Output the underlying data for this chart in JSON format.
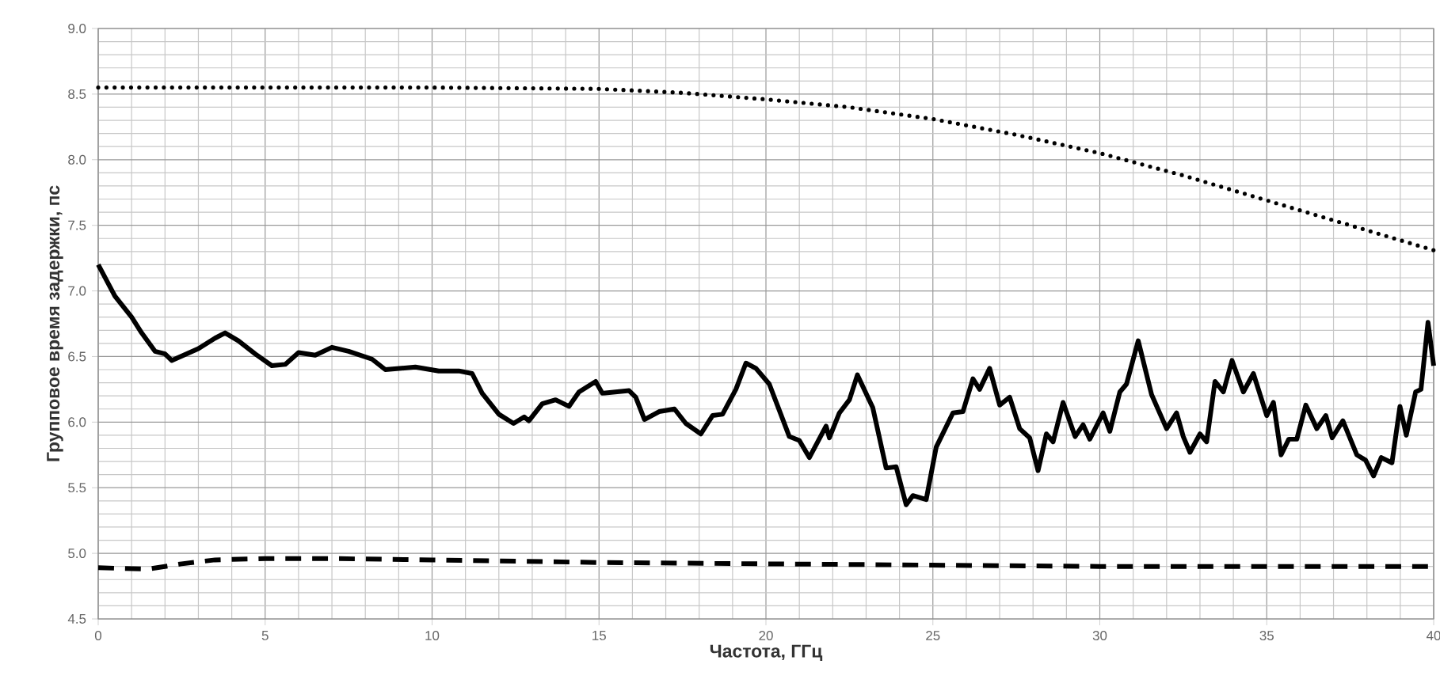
{
  "chart_data": {
    "type": "line",
    "xlabel": "Частота, ГГц",
    "ylabel": "Групповое время задержки, пс",
    "xlim": [
      0,
      40
    ],
    "xticks": [
      0,
      5,
      10,
      15,
      20,
      25,
      30,
      35,
      40
    ],
    "ylim": [
      4.5,
      9.0
    ],
    "yticks": [
      {
        "value": 4.5,
        "label": "4.5"
      },
      {
        "value": 5.0,
        "label": "5.0"
      },
      {
        "value": 5.5,
        "label": "5.5"
      },
      {
        "value": 6.0,
        "label": "6.0"
      },
      {
        "value": 6.5,
        "label": "6.5"
      },
      {
        "value": 7.0,
        "label": "7.0"
      },
      {
        "value": 7.5,
        "label": "7.5"
      },
      {
        "value": 8.0,
        "label": "8.0"
      },
      {
        "value": 8.5,
        "label": "8.5"
      },
      {
        "value": 9.0,
        "label": "9.0"
      }
    ],
    "grid": true,
    "series": [
      {
        "color": "#000000",
        "line_style": "dotted",
        "x": [
          0,
          5,
          10,
          15,
          17.5,
          20,
          22.5,
          25,
          27.5,
          30,
          32.5,
          35,
          37.5,
          40
        ],
        "values": [
          8.55,
          8.55,
          8.55,
          8.54,
          8.51,
          8.46,
          8.4,
          8.31,
          8.19,
          8.05,
          7.88,
          7.69,
          7.5,
          7.31
        ]
      },
      {
        "color": "#000000",
        "line_style": "solid",
        "x": [
          0,
          0.5,
          1.0,
          1.3,
          1.7,
          2.0,
          2.2,
          3.0,
          3.5,
          3.8,
          4.2,
          4.7,
          5.2,
          5.6,
          6.0,
          6.5,
          7.0,
          7.5,
          8.2,
          8.6,
          9.5,
          10.2,
          10.8,
          11.2,
          11.5,
          12.0,
          12.44,
          12.76,
          12.9,
          13.3,
          13.7,
          14.1,
          14.4,
          14.9,
          15.1,
          15.9,
          16.1,
          16.36,
          16.8,
          17.26,
          17.6,
          18.05,
          18.4,
          18.7,
          19.1,
          19.4,
          19.7,
          20.1,
          20.4,
          20.7,
          21.0,
          21.3,
          21.8,
          21.9,
          22.2,
          22.5,
          22.74,
          23.2,
          23.6,
          23.9,
          24.2,
          24.4,
          24.8,
          25.1,
          25.6,
          25.9,
          26.2,
          26.4,
          26.7,
          27.0,
          27.3,
          27.6,
          27.9,
          28.15,
          28.4,
          28.6,
          28.9,
          29.26,
          29.5,
          29.7,
          30.1,
          30.3,
          30.6,
          30.8,
          31.15,
          31.55,
          32.0,
          32.3,
          32.5,
          32.7,
          33.0,
          33.2,
          33.45,
          33.7,
          33.96,
          34.3,
          34.6,
          35.0,
          35.2,
          35.43,
          35.66,
          35.9,
          36.17,
          36.5,
          36.77,
          36.96,
          37.28,
          37.7,
          37.96,
          38.2,
          38.43,
          38.75,
          38.99,
          39.18,
          39.46,
          39.62,
          39.83,
          40.0
        ],
        "values": [
          7.2,
          6.96,
          6.8,
          6.68,
          6.54,
          6.52,
          6.47,
          6.56,
          6.64,
          6.68,
          6.62,
          6.52,
          6.43,
          6.44,
          6.53,
          6.51,
          6.57,
          6.54,
          6.48,
          6.4,
          6.42,
          6.39,
          6.39,
          6.37,
          6.22,
          6.06,
          5.99,
          6.04,
          6.01,
          6.14,
          6.17,
          6.12,
          6.23,
          6.31,
          6.22,
          6.24,
          6.19,
          6.02,
          6.08,
          6.1,
          5.99,
          5.91,
          6.05,
          6.06,
          6.25,
          6.45,
          6.41,
          6.29,
          6.09,
          5.89,
          5.86,
          5.73,
          5.97,
          5.88,
          6.07,
          6.17,
          6.36,
          6.11,
          5.65,
          5.66,
          5.37,
          5.44,
          5.41,
          5.81,
          6.07,
          6.08,
          6.33,
          6.25,
          6.41,
          6.13,
          6.19,
          5.95,
          5.88,
          5.63,
          5.91,
          5.85,
          6.15,
          5.89,
          5.98,
          5.87,
          6.07,
          5.93,
          6.23,
          6.29,
          6.62,
          6.21,
          5.95,
          6.07,
          5.89,
          5.77,
          5.91,
          5.85,
          6.31,
          6.23,
          6.47,
          6.23,
          6.37,
          6.05,
          6.15,
          5.75,
          5.87,
          5.87,
          6.13,
          5.95,
          6.05,
          5.88,
          6.01,
          5.75,
          5.71,
          5.59,
          5.73,
          5.69,
          6.12,
          5.9,
          6.23,
          6.25,
          6.76,
          6.43
        ]
      },
      {
        "color": "#000000",
        "line_style": "dashed",
        "x": [
          0,
          1.5,
          2.5,
          3.5,
          5,
          7,
          10,
          15,
          20,
          25,
          30,
          40
        ],
        "values": [
          4.89,
          4.88,
          4.92,
          4.95,
          4.96,
          4.96,
          4.95,
          4.93,
          4.92,
          4.91,
          4.9,
          4.9
        ]
      }
    ]
  }
}
